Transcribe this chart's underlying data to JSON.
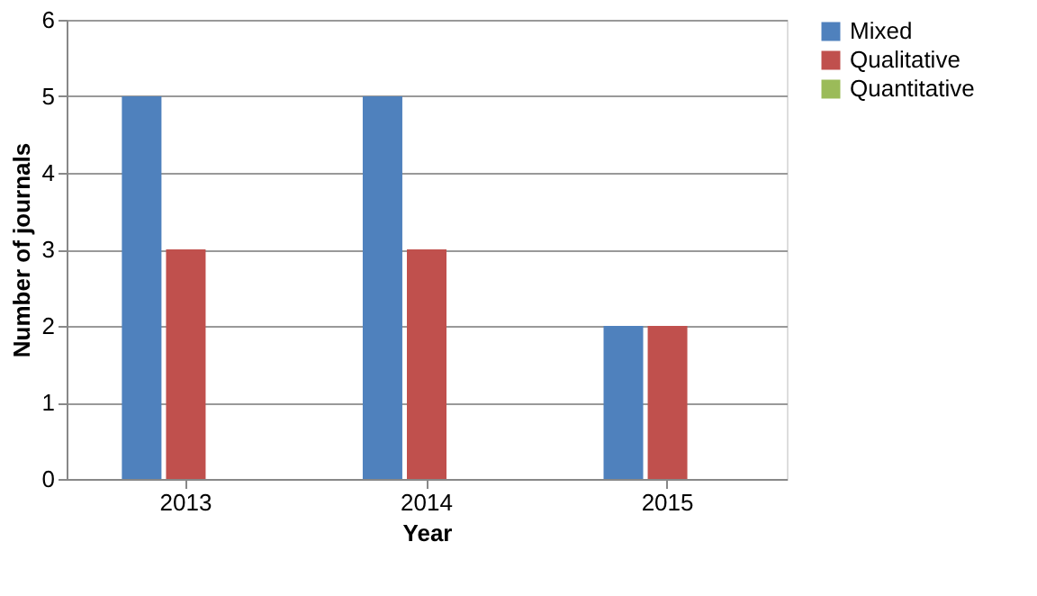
{
  "chart_data": {
    "type": "bar",
    "xlabel": "Year",
    "ylabel": "Number of journals",
    "categories": [
      "2013",
      "2014",
      "2015"
    ],
    "series": [
      {
        "name": "Mixed",
        "color": "#4f81bd",
        "values": [
          5,
          5,
          2
        ]
      },
      {
        "name": "Qualitative",
        "color": "#c0504d",
        "values": [
          3,
          3,
          2
        ]
      },
      {
        "name": "Quantitative",
        "color": "#9bbb59",
        "values": [
          0,
          0,
          0
        ]
      }
    ],
    "ylim": [
      0,
      6
    ],
    "yticks": [
      0,
      1,
      2,
      3,
      4,
      5,
      6
    ],
    "grid": "y",
    "legend": "right"
  }
}
